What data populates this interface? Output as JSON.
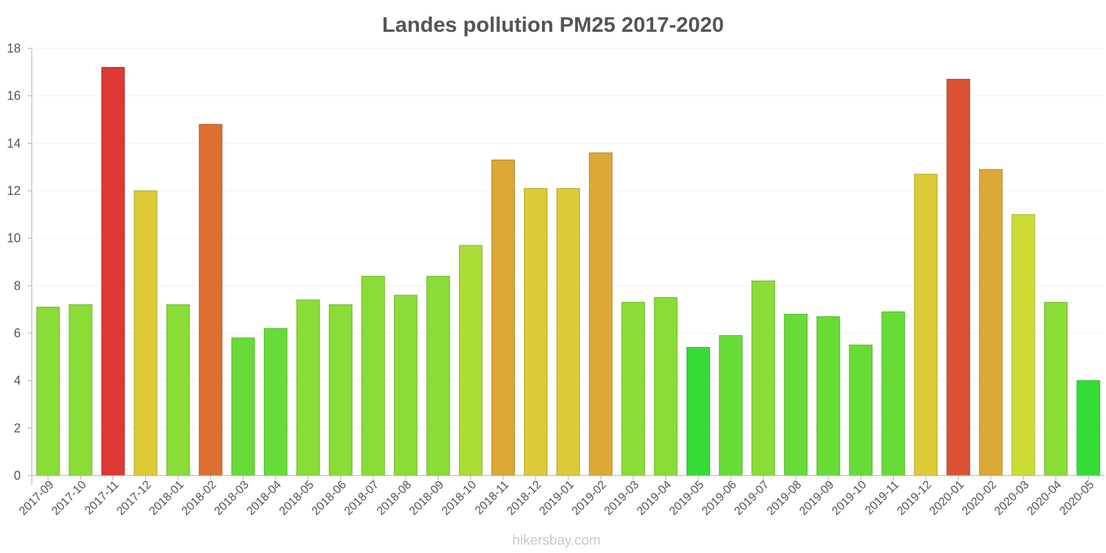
{
  "chart_data": {
    "type": "bar",
    "title": "Landes pollution PM25 2017-2020",
    "xlabel": "",
    "ylabel": "",
    "ylim": [
      0,
      18
    ],
    "yticks": [
      0,
      2,
      4,
      6,
      8,
      10,
      12,
      14,
      16,
      18
    ],
    "grid": true,
    "categories": [
      "2017-09",
      "2017-10",
      "2017-11",
      "2017-12",
      "2018-01",
      "2018-02",
      "2018-03",
      "2018-04",
      "2018-05",
      "2018-06",
      "2018-07",
      "2018-08",
      "2018-09",
      "2018-10",
      "2018-11",
      "2018-12",
      "2019-01",
      "2019-02",
      "2019-03",
      "2019-04",
      "2019-05",
      "2019-06",
      "2019-07",
      "2019-08",
      "2019-09",
      "2019-10",
      "2019-11",
      "2019-12",
      "2020-01",
      "2020-02",
      "2020-03",
      "2020-04",
      "2020-05"
    ],
    "values": [
      7.1,
      7.2,
      17.2,
      12.0,
      7.2,
      14.8,
      5.8,
      6.2,
      7.4,
      7.2,
      8.4,
      7.6,
      8.4,
      9.7,
      13.3,
      12.1,
      12.1,
      13.6,
      7.3,
      7.5,
      5.4,
      5.9,
      8.2,
      6.8,
      6.7,
      5.5,
      6.9,
      12.7,
      16.7,
      12.9,
      11.0,
      7.3,
      4.0
    ],
    "colors": [
      "#8ADC36",
      "#8ADC36",
      "#DC3836",
      "#DCCA36",
      "#8ADC36",
      "#DC6F33",
      "#68DC36",
      "#68DC36",
      "#8ADC36",
      "#8ADC36",
      "#8ADC36",
      "#8ADC36",
      "#8ADC36",
      "#ACDC36",
      "#DCA836",
      "#DCCA36",
      "#DCCA36",
      "#DCA836",
      "#8ADC36",
      "#8ADC36",
      "#36DC36",
      "#68DC36",
      "#8ADC36",
      "#68DC36",
      "#68DC36",
      "#68DC36",
      "#68DC36",
      "#DCCA36",
      "#DC5033",
      "#DCA836",
      "#CCDC36",
      "#8ADC36",
      "#36DC36"
    ]
  },
  "watermark": "hikersbay.com"
}
